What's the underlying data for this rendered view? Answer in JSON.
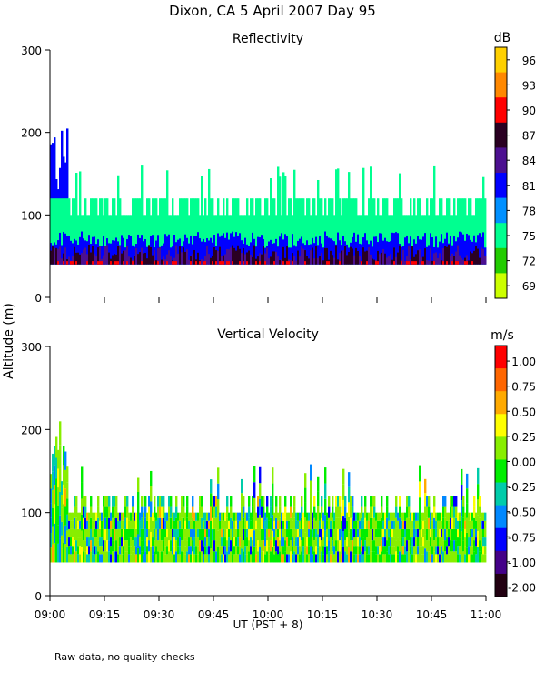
{
  "title": "Dixon, CA   5 April 2007   Day   95",
  "footnote": "Raw data, no quality checks",
  "y_axis_label": "Altitude (m)",
  "x_axis_label": "UT  (PST + 8)",
  "x_ticks": [
    "09:00",
    "09:15",
    "09:30",
    "09:45",
    "10:00",
    "10:15",
    "10:30",
    "10:45",
    "11:00"
  ],
  "chart_data": [
    {
      "type": "heatmap",
      "title": "Reflectivity",
      "xlabel": "UT  (PST + 8)",
      "ylabel": "Altitude (m)",
      "xlim": [
        "09:00",
        "11:00"
      ],
      "ylim": [
        0,
        300
      ],
      "y_ticks": [
        0,
        100,
        200,
        300
      ],
      "colorbar": {
        "unit": "dB",
        "labels": [
          "96",
          "93",
          "90",
          "87",
          "84",
          "81",
          "78",
          "75",
          "72",
          "69"
        ],
        "colors": [
          "#ffd000",
          "#ff8800",
          "#ff0000",
          "#2a0022",
          "#4c1090",
          "#0000ff",
          "#0090ff",
          "#00ff90",
          "#22cc00",
          "#ccff00"
        ]
      },
      "signal_range_m": [
        40,
        120
      ],
      "max_echo_top_m": 220
    },
    {
      "type": "heatmap",
      "title": "Vertical Velocity",
      "xlabel": "UT  (PST + 8)",
      "ylabel": "Altitude (m)",
      "xlim": [
        "09:00",
        "11:00"
      ],
      "ylim": [
        0,
        300
      ],
      "y_ticks": [
        0,
        100,
        200,
        300
      ],
      "colorbar": {
        "unit": "m/s",
        "labels": [
          "1.00",
          "0.75",
          "0.50",
          "0.25",
          "0.00",
          "-0.25",
          "-0.50",
          "-0.75",
          "-1.00",
          "-2.00"
        ],
        "colors": [
          "#ff0000",
          "#ff6600",
          "#ffaa00",
          "#ffff00",
          "#88ee00",
          "#00ee00",
          "#00ccaa",
          "#0088ff",
          "#0000ff",
          "#440088",
          "#220011"
        ]
      },
      "signal_range_m": [
        40,
        120
      ],
      "max_echo_top_m": 220
    }
  ]
}
